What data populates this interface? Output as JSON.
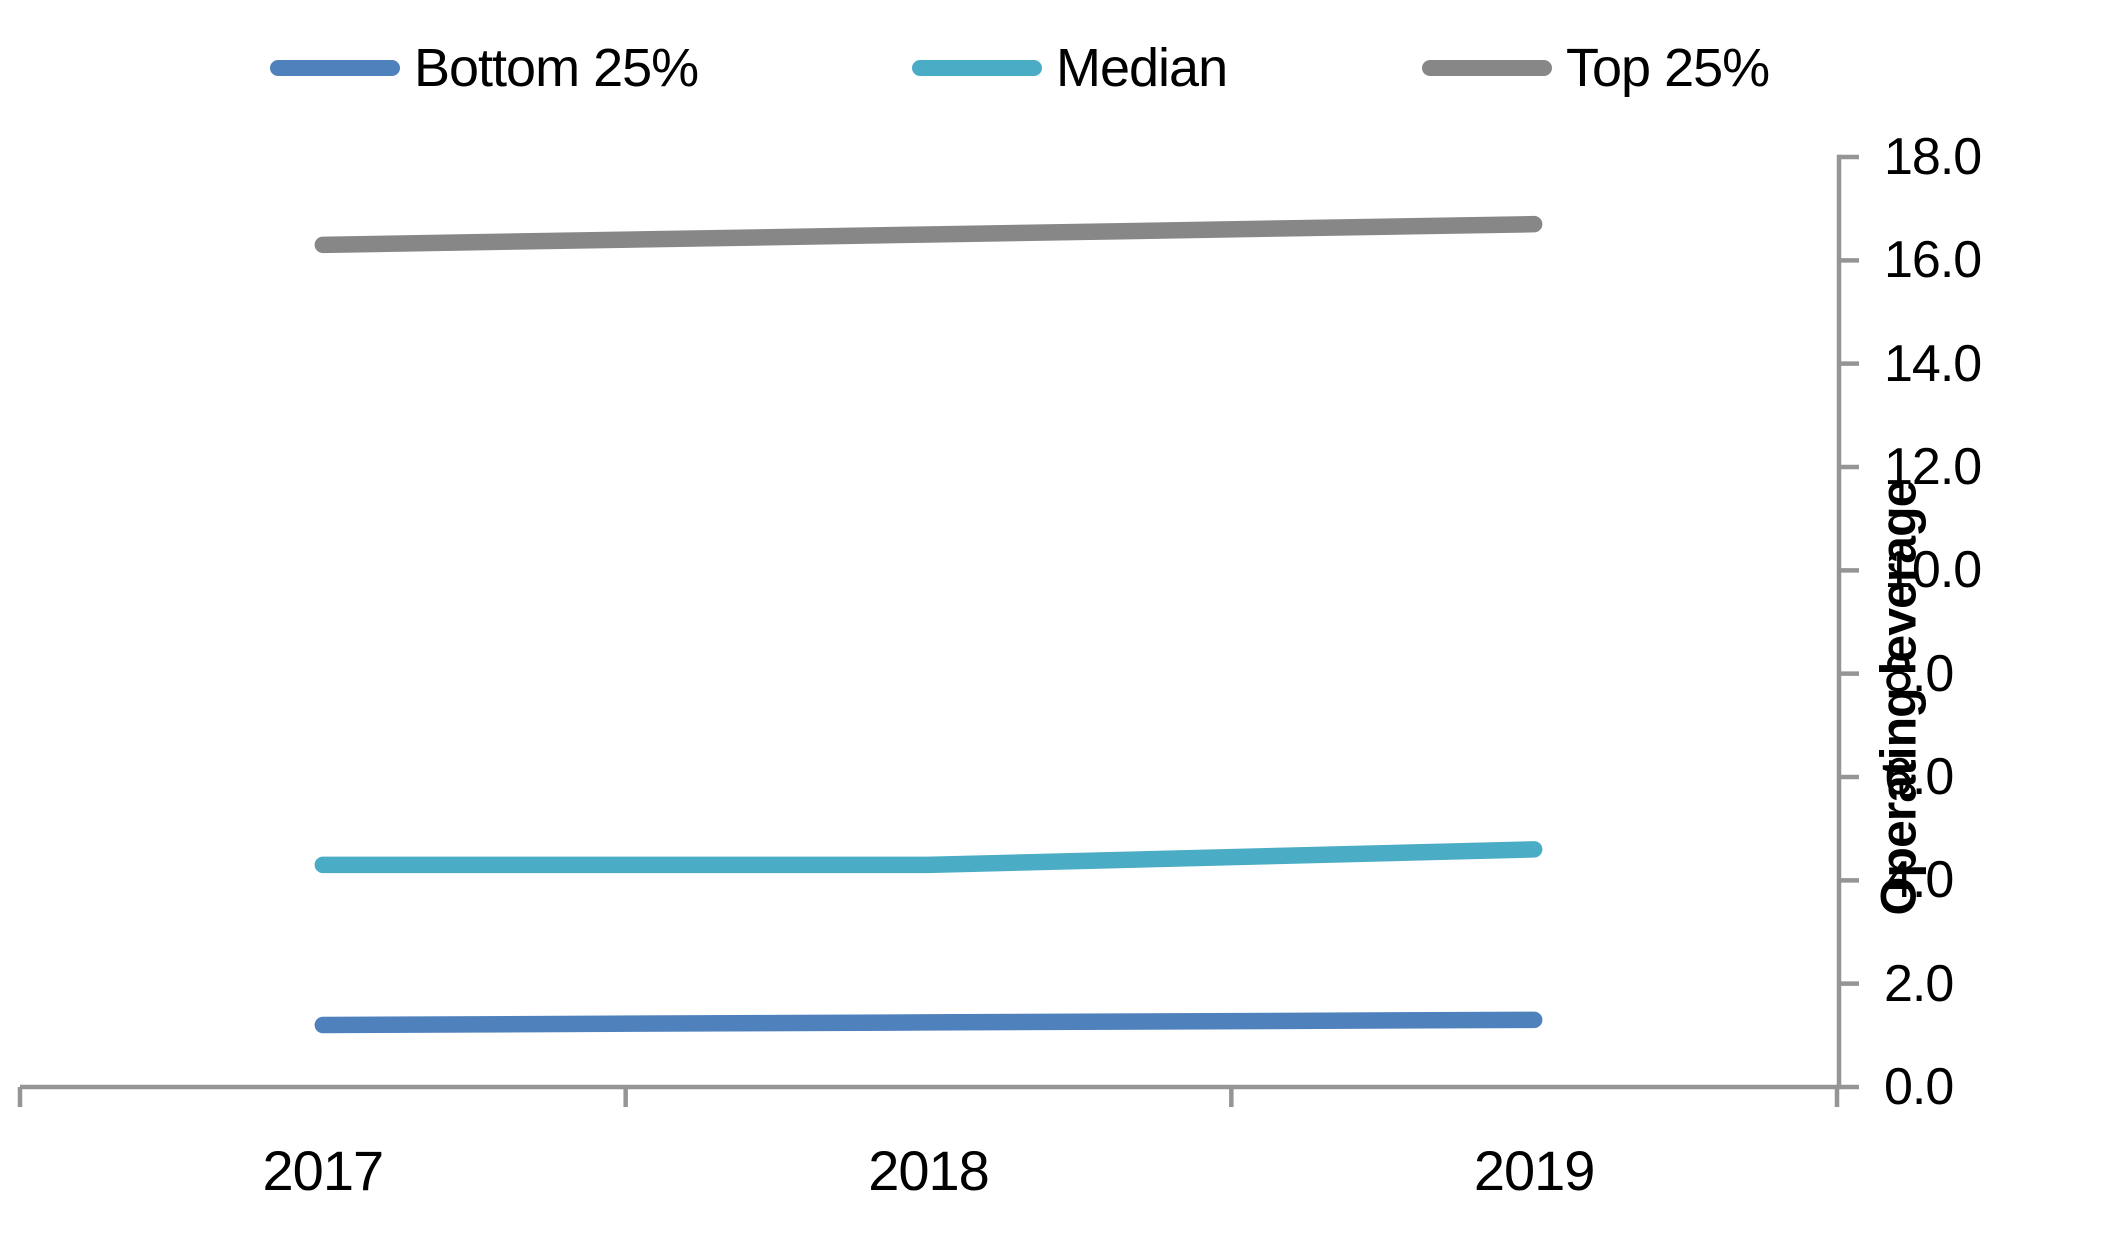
{
  "legend": {
    "items": [
      {
        "label": "Bottom 25%",
        "color": "#4F81BD"
      },
      {
        "label": "Median",
        "color": "#4BACC6"
      },
      {
        "label": "Top 25%",
        "color": "#878787"
      }
    ]
  },
  "y_axis": {
    "title": "Operating leverage",
    "tick_labels": [
      "18.0",
      "16.0",
      "14.0",
      "12.0",
      "10.0",
      "8.0",
      "6.0",
      "4.0",
      "2.0",
      "0.0"
    ]
  },
  "x_axis": {
    "tick_labels": [
      "2017",
      "2018",
      "2019"
    ]
  },
  "chart_data": {
    "type": "line",
    "title": "",
    "categories": [
      "2017",
      "2018",
      "2019"
    ],
    "series": [
      {
        "name": "Bottom 25%",
        "color": "#4F81BD",
        "values": [
          1.2,
          1.25,
          1.3
        ]
      },
      {
        "name": "Median",
        "color": "#4BACC6",
        "values": [
          4.3,
          4.3,
          4.6
        ]
      },
      {
        "name": "Top 25%",
        "color": "#878787",
        "values": [
          16.3,
          16.5,
          16.7
        ]
      }
    ],
    "xlabel": "",
    "ylabel": "Operating leverage",
    "ylim": [
      0.0,
      18.0
    ],
    "ytick_step": 2.0,
    "grid": false,
    "legend_position": "top",
    "axis_color": "#959595",
    "line_width": 16.5
  }
}
